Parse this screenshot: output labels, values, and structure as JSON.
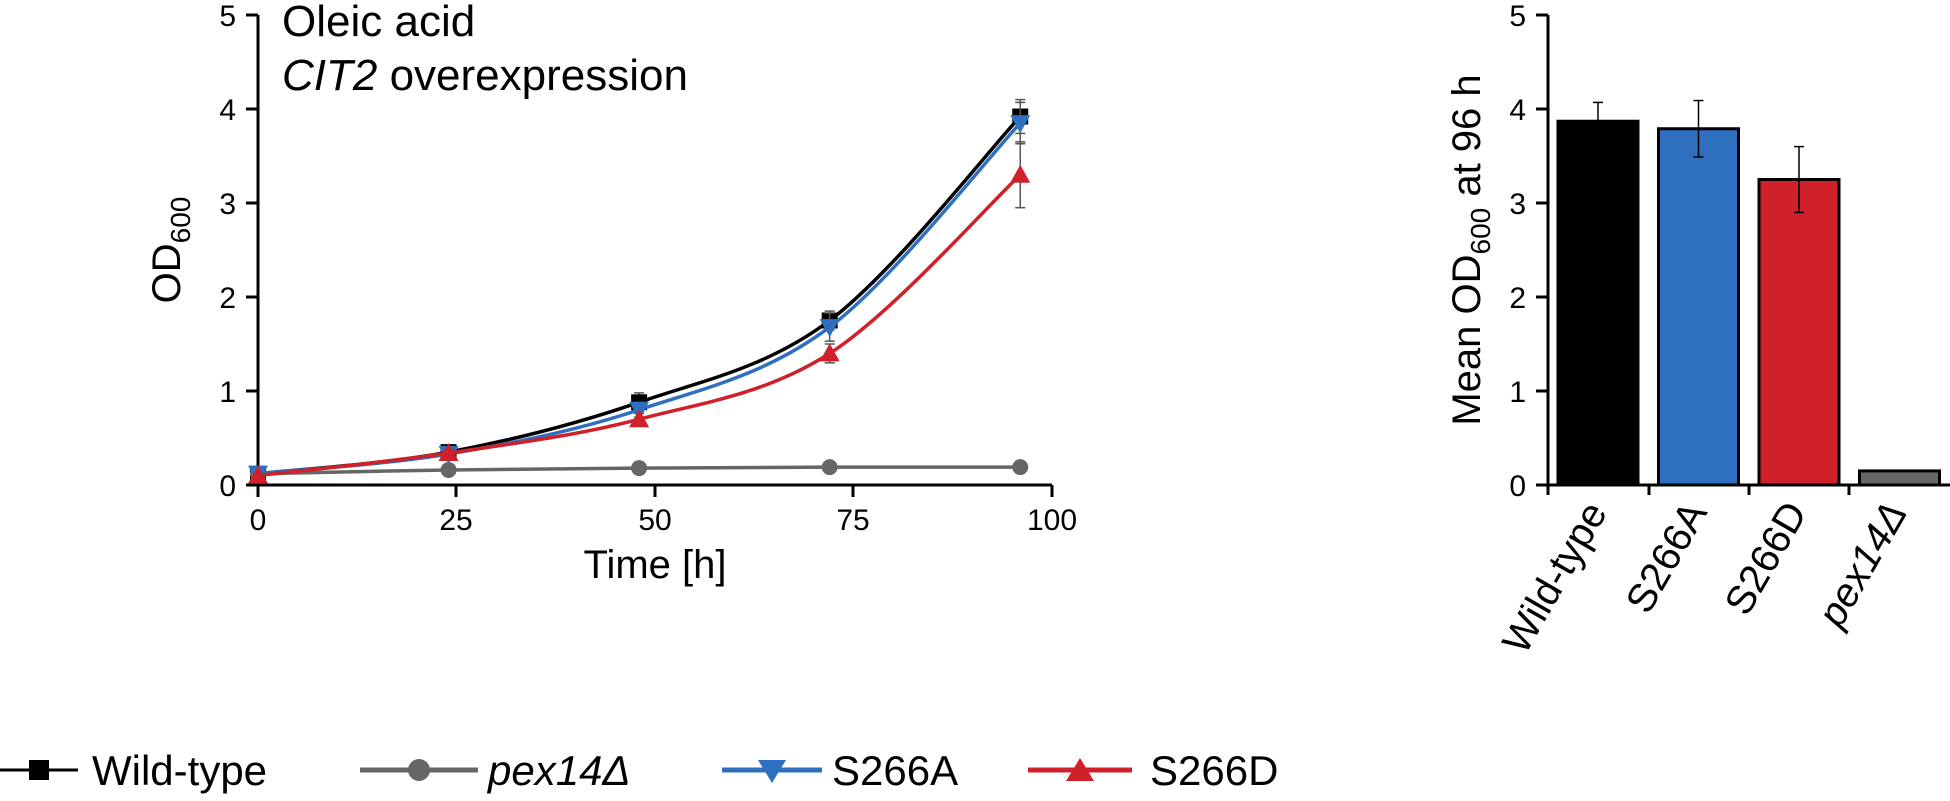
{
  "chart_data": [
    {
      "type": "line",
      "annotation": {
        "line1": "Oleic acid",
        "line2_italic": "CIT2",
        "line2_rest": " overexpression"
      },
      "xlabel": "Time [h]",
      "ylabel": {
        "main": "OD",
        "sub": "600"
      },
      "xlim": [
        0,
        100
      ],
      "ylim": [
        0,
        5
      ],
      "xticks": [
        "0",
        "25",
        "50",
        "75",
        "100"
      ],
      "yticks": [
        "0",
        "1",
        "2",
        "3",
        "4",
        "5"
      ],
      "x": [
        0,
        24,
        48,
        72,
        96
      ],
      "series": [
        {
          "name": "Wild-type",
          "italic": false,
          "marker": "square",
          "color": "#000000",
          "values": [
            0.12,
            0.35,
            0.88,
            1.75,
            3.92
          ],
          "errors": [
            0.02,
            0.03,
            0.1,
            0.1,
            0.18
          ]
        },
        {
          "name": "pex14Δ",
          "italic": true,
          "marker": "circle",
          "color": "#666666",
          "values": [
            0.12,
            0.16,
            0.18,
            0.19,
            0.19
          ],
          "errors": [
            0.01,
            0.01,
            0.01,
            0.01,
            0.01
          ]
        },
        {
          "name": "S266A",
          "italic": false,
          "marker": "triangle-down",
          "color": "#2f6fbf",
          "values": [
            0.12,
            0.33,
            0.8,
            1.68,
            3.85
          ],
          "errors": [
            0.02,
            0.03,
            0.08,
            0.15,
            0.22
          ]
        },
        {
          "name": "S266D",
          "italic": false,
          "marker": "triangle-up",
          "color": "#d0202a",
          "values": [
            0.1,
            0.34,
            0.7,
            1.4,
            3.3
          ],
          "errors": [
            0.02,
            0.03,
            0.06,
            0.1,
            0.35
          ]
        }
      ]
    },
    {
      "type": "bar",
      "ylabel": {
        "pre": "Mean OD",
        "sub": "600",
        "post": " at 96 h"
      },
      "ylim": [
        0,
        5
      ],
      "yticks": [
        "0",
        "1",
        "2",
        "3",
        "4",
        "5"
      ],
      "categories": [
        "Wild-type",
        "S266A",
        "S266D",
        "pex14Δ"
      ],
      "category_italic": [
        false,
        false,
        false,
        true
      ],
      "values": [
        3.87,
        3.79,
        3.25,
        0.15
      ],
      "errors": [
        0.2,
        0.3,
        0.35,
        0.0
      ],
      "colors": [
        "#000000",
        "#2f6fbf",
        "#d0202a",
        "#666666"
      ]
    }
  ]
}
